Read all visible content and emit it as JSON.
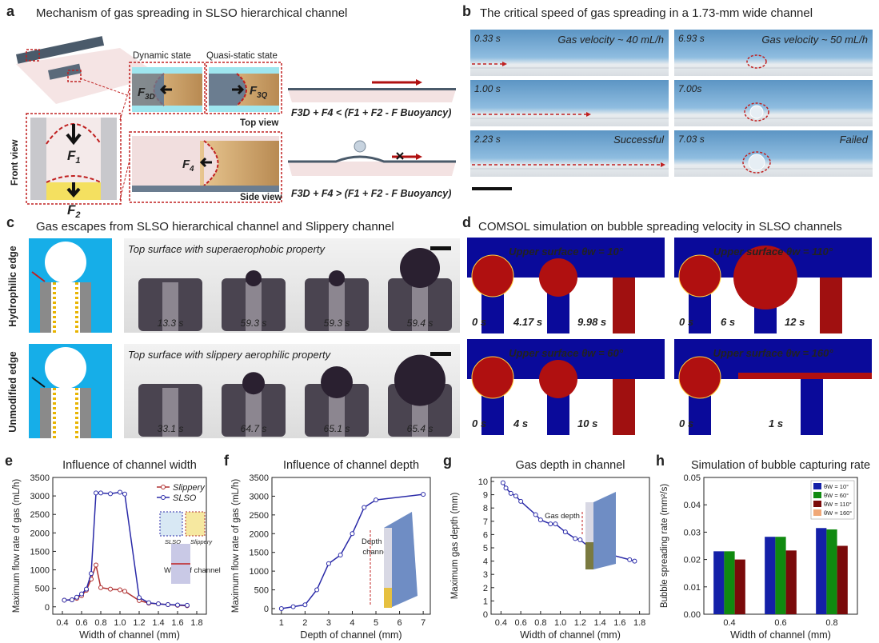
{
  "panels": {
    "a": {
      "label": "a",
      "title": "Mechanism of gas spreading in SLSO hierarchical channel",
      "dynamic_state": "Dynamic state",
      "quasi_static_state": "Quasi-static state",
      "top_view": "Top view",
      "side_view": "Side view",
      "front_view": "Front view",
      "forces": {
        "f3d": {
          "symbol": "F",
          "subscript": "3D"
        },
        "f3q": {
          "symbol": "F",
          "subscript": "3Q"
        },
        "f4": {
          "symbol": "F",
          "subscript": "4"
        },
        "f1": {
          "symbol": "F",
          "subscript": "1"
        },
        "f2": {
          "symbol": "F",
          "subscript": "2"
        }
      },
      "equation_top": "F3D + F4 < (F1 + F2 - F Buoyancy)",
      "equation_bottom": "F3D + F4 > (F1 + F2 - F Buoyancy)"
    },
    "b": {
      "label": "b",
      "title": "The critical speed of gas spreading in a 1.73-mm wide channel",
      "frames": [
        {
          "time": "0.33 s",
          "caption": "Gas velocity ~ 40 mL/h"
        },
        {
          "time": "1.00 s"
        },
        {
          "time": "2.23 s",
          "caption": "Successful"
        },
        {
          "time": "6.93 s",
          "caption": "Gas velocity ~ 50 mL/h"
        },
        {
          "time": "7.00s"
        },
        {
          "time": "7.03 s",
          "caption": "Failed"
        }
      ]
    },
    "c": {
      "label": "c",
      "title": "Gas escapes from SLSO hierarchical channel and Slippery channel",
      "rows": [
        {
          "edge": "Hydrophilic edge",
          "caption": "Top surface with superaerophobic property",
          "times": [
            "13.3 s",
            "59.3 s",
            "59.3 s",
            "59.4 s"
          ]
        },
        {
          "edge": "Unmodified edge",
          "caption": "Top surface with slippery aerophilic property",
          "times": [
            "33.1 s",
            "64.7 s",
            "65.1 s",
            "65.4 s"
          ]
        }
      ]
    },
    "d": {
      "label": "d",
      "title": "COMSOL simulation on bubble spreading velocity in SLSO channels",
      "images": [
        {
          "caption": "Upper surface θw = 10°",
          "times": [
            "0 s",
            "4.17 s",
            "9.98 s"
          ]
        },
        {
          "caption": "Upper surface θw = 110°",
          "times": [
            "0 s",
            "6 s",
            "12 s"
          ]
        },
        {
          "caption": "Upper surface θw = 60°",
          "times": [
            "0 s",
            "4 s",
            "10 s"
          ]
        },
        {
          "caption": "Upper surface θw = 160°",
          "times": [
            "0 s",
            "1 s"
          ]
        }
      ]
    }
  },
  "chart_data": [
    {
      "type": "line",
      "label": "e",
      "title": "Influence of channel width",
      "x_label": "Width of channel (mm)",
      "y_label": "Maximum flow rate of gas (mL/h)",
      "x": [
        0.42,
        0.5,
        0.55,
        0.6,
        0.65,
        0.7,
        0.75,
        0.8,
        0.9,
        1.0,
        1.05,
        1.2,
        1.3,
        1.4,
        1.5,
        1.6,
        1.7
      ],
      "series": [
        {
          "name": "Slippery",
          "color": "#b03030",
          "values": [
            180,
            190,
            230,
            300,
            450,
            750,
            1130,
            520,
            480,
            460,
            420,
            170,
            100,
            80,
            60,
            40,
            30
          ]
        },
        {
          "name": "SLSO",
          "color": "#2a2aa8",
          "values": [
            180,
            190,
            260,
            350,
            480,
            900,
            3080,
            3080,
            3060,
            3100,
            3050,
            250,
            110,
            80,
            60,
            50,
            40
          ]
        }
      ],
      "xlim": [
        0.3,
        1.9
      ],
      "xticks": [
        0.4,
        0.6,
        0.8,
        {
          "value": 1.0,
          "label": "1.0"
        },
        1.2,
        1.4,
        1.6,
        1.8
      ],
      "ylim": [
        -200,
        3500
      ],
      "yticks": [
        0,
        500,
        1000,
        1500,
        2000,
        2500,
        3000,
        3500
      ],
      "legend": "upper right",
      "annotations": [
        "SLSO",
        "Slippery",
        "Width of channel"
      ]
    },
    {
      "type": "line",
      "label": "f",
      "title": "Influence of channel depth",
      "x_label": "Depth of channel (mm)",
      "y_label": "Maximum flow rate of gas (mL/h)",
      "x": [
        1,
        1.5,
        2,
        2.5,
        3,
        3.5,
        4,
        4.5,
        5,
        7
      ],
      "series": [
        {
          "name": null,
          "color": "#2a2aa8",
          "values": [
            0,
            50,
            100,
            500,
            1200,
            1430,
            2000,
            2700,
            2900,
            3050
          ]
        }
      ],
      "xlim": [
        0.6,
        7.3
      ],
      "xticks": [
        1,
        2,
        3,
        4,
        5,
        6,
        7
      ],
      "ylim": [
        -150,
        3500
      ],
      "yticks": [
        0,
        500,
        1000,
        1500,
        2000,
        2500,
        3000,
        3500
      ],
      "annotations": [
        "Depth of",
        "channel"
      ]
    },
    {
      "type": "line",
      "label": "g",
      "title": "Gas depth in channel",
      "x_label": "Width of channel (mm)",
      "y_label": "Maximum gas depth (mm)",
      "x": [
        0.42,
        0.45,
        0.5,
        0.55,
        0.6,
        0.75,
        0.8,
        0.9,
        0.95,
        1.05,
        1.15,
        1.2,
        1.3,
        1.4,
        1.5,
        1.7,
        1.75
      ],
      "series": [
        {
          "name": null,
          "color": "#2a2aa8",
          "values": [
            9.9,
            9.5,
            9.1,
            8.9,
            8.5,
            7.5,
            7.1,
            6.8,
            6.8,
            6.2,
            5.7,
            5.6,
            5.0,
            4.8,
            4.5,
            4.1,
            4.0
          ]
        }
      ],
      "xlim": [
        0.3,
        1.9
      ],
      "xticks": [
        0.4,
        0.6,
        0.8,
        {
          "value": 1.0,
          "label": "1.0"
        },
        1.2,
        1.4,
        1.6,
        1.8
      ],
      "ylim": [
        0,
        10.3
      ],
      "yticks": [
        0,
        1,
        2,
        3,
        4,
        5,
        6,
        7,
        8,
        9,
        10
      ],
      "annotations": [
        "Gas depth"
      ]
    },
    {
      "type": "bar",
      "label": "h",
      "title": "Simulation of bubble capturing rate",
      "x_label": "Width of channel (mm)",
      "y_label": "Bubble spreading rate (mm²/s)",
      "categories": [
        "0.4",
        "0.6",
        "0.8"
      ],
      "series": [
        {
          "name": "θW = 10°",
          "color": "#1420a8",
          "values": [
            0.023,
            0.0283,
            0.0315
          ]
        },
        {
          "name": "θW = 60°",
          "color": "#108a10",
          "values": [
            0.023,
            0.0283,
            0.031
          ]
        },
        {
          "name": "θW = 110°",
          "color": "#7a0a0a",
          "values": [
            0.02,
            0.0233,
            0.025
          ]
        },
        {
          "name": "θW = 160°",
          "color": "#f0a878",
          "values": [
            null,
            null,
            null
          ]
        }
      ],
      "ylim": [
        0,
        0.05
      ],
      "yticks": [
        {
          "value": 0,
          "label": "0.00"
        },
        0.01,
        0.02,
        0.03,
        0.04,
        0.05
      ],
      "legend": "upper right"
    }
  ]
}
